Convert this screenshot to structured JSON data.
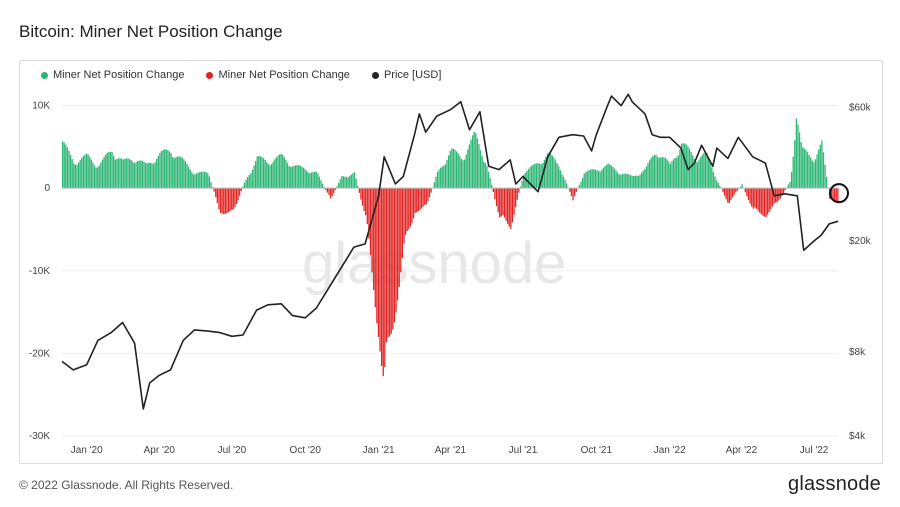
{
  "title": "Bitcoin: Miner Net Position Change",
  "legend": [
    {
      "label": "Miner Net Position Change",
      "color": "#2bb673"
    },
    {
      "label": "Miner Net Position Change",
      "color": "#e32222"
    },
    {
      "label": "Price [USD]",
      "color": "#222222"
    }
  ],
  "watermark": "glassnode",
  "footer": "© 2022 Glassnode. All Rights Reserved.",
  "brand": "glassnode",
  "chart_data": {
    "type": "bar",
    "x_ticks": [
      "Jan '20",
      "Apr '20",
      "Jul '20",
      "Oct '20",
      "Jan '21",
      "Apr '21",
      "Jul '21",
      "Oct '21",
      "Jan '22",
      "Apr '22",
      "Jul '22"
    ],
    "y_left_ticks": [
      "10K",
      "0",
      "-10K",
      "-20K",
      "-30K"
    ],
    "y_left_values": [
      10000,
      0,
      -10000,
      -20000,
      -30000
    ],
    "y_left_range": [
      -30000,
      12000
    ],
    "y_right_ticks": [
      "$60k",
      "$20k",
      "$8k",
      "$4k"
    ],
    "y_right_values": [
      60000,
      20000,
      8000,
      4000
    ],
    "y_right_scale": "log",
    "y_right_range": [
      4000,
      70000
    ],
    "x_range": [
      "2019-12-01",
      "2022-07-31"
    ],
    "series": [
      {
        "name": "Miner Net Position Change",
        "kind": "bar",
        "positive_color": "#2bb673",
        "negative_color": "#e32222",
        "points": [
          [
            "2019-12-01",
            6000
          ],
          [
            "2019-12-15",
            3500
          ],
          [
            "2020-01-01",
            4200
          ],
          [
            "2020-01-15",
            3000
          ],
          [
            "2020-02-01",
            5000
          ],
          [
            "2020-02-15",
            3500
          ],
          [
            "2020-03-01",
            4000
          ],
          [
            "2020-03-15",
            3000
          ],
          [
            "2020-04-01",
            4500
          ],
          [
            "2020-04-15",
            5000
          ],
          [
            "2020-05-01",
            3500
          ],
          [
            "2020-05-15",
            2000
          ],
          [
            "2020-06-01",
            2000
          ],
          [
            "2020-06-15",
            -3000
          ],
          [
            "2020-07-01",
            -3500
          ],
          [
            "2020-07-15",
            500
          ],
          [
            "2020-08-01",
            4000
          ],
          [
            "2020-08-15",
            3500
          ],
          [
            "2020-09-01",
            4200
          ],
          [
            "2020-09-15",
            3000
          ],
          [
            "2020-10-01",
            2500
          ],
          [
            "2020-10-15",
            2000
          ],
          [
            "2020-11-01",
            -1500
          ],
          [
            "2020-11-15",
            1500
          ],
          [
            "2020-12-01",
            2000
          ],
          [
            "2020-12-15",
            -4000
          ],
          [
            "2021-01-01",
            -19000
          ],
          [
            "2021-01-07",
            -27000
          ],
          [
            "2021-01-15",
            -20000
          ],
          [
            "2021-02-01",
            -8000
          ],
          [
            "2021-02-15",
            -3000
          ],
          [
            "2021-03-01",
            -2500
          ],
          [
            "2021-03-15",
            2000
          ],
          [
            "2021-04-01",
            5000
          ],
          [
            "2021-04-15",
            4000
          ],
          [
            "2021-05-01",
            7000
          ],
          [
            "2021-05-15",
            3500
          ],
          [
            "2021-06-01",
            -4000
          ],
          [
            "2021-06-15",
            -5000
          ],
          [
            "2021-07-01",
            2000
          ],
          [
            "2021-07-15",
            3000
          ],
          [
            "2021-08-01",
            4500
          ],
          [
            "2021-08-15",
            3000
          ],
          [
            "2021-09-01",
            -1500
          ],
          [
            "2021-09-15",
            2000
          ],
          [
            "2021-10-01",
            2500
          ],
          [
            "2021-10-15",
            3000
          ],
          [
            "2021-11-01",
            2000
          ],
          [
            "2021-11-15",
            1500
          ],
          [
            "2021-12-01",
            2500
          ],
          [
            "2021-12-15",
            5000
          ],
          [
            "2022-01-01",
            3000
          ],
          [
            "2022-01-15",
            6000
          ],
          [
            "2022-02-01",
            4000
          ],
          [
            "2022-02-15",
            4500
          ],
          [
            "2022-03-01",
            1000
          ],
          [
            "2022-03-15",
            -2000
          ],
          [
            "2022-04-01",
            500
          ],
          [
            "2022-04-15",
            -3000
          ],
          [
            "2022-05-01",
            -3500
          ],
          [
            "2022-05-15",
            -2000
          ],
          [
            "2022-06-01",
            1000
          ],
          [
            "2022-06-08",
            10000
          ],
          [
            "2022-06-15",
            5000
          ],
          [
            "2022-07-01",
            4000
          ],
          [
            "2022-07-10",
            5800
          ],
          [
            "2022-07-20",
            -1500
          ],
          [
            "2022-07-31",
            -2000
          ]
        ]
      },
      {
        "name": "Price [USD]",
        "kind": "line",
        "axis": "right",
        "color": "#222222",
        "points": [
          [
            "2019-12-01",
            7400
          ],
          [
            "2019-12-15",
            6900
          ],
          [
            "2020-01-01",
            7200
          ],
          [
            "2020-01-15",
            8800
          ],
          [
            "2020-02-01",
            9400
          ],
          [
            "2020-02-15",
            10200
          ],
          [
            "2020-03-01",
            8600
          ],
          [
            "2020-03-12",
            5000
          ],
          [
            "2020-03-20",
            6200
          ],
          [
            "2020-04-01",
            6600
          ],
          [
            "2020-04-15",
            6900
          ],
          [
            "2020-05-01",
            8800
          ],
          [
            "2020-05-15",
            9600
          ],
          [
            "2020-06-01",
            9500
          ],
          [
            "2020-06-15",
            9400
          ],
          [
            "2020-07-01",
            9100
          ],
          [
            "2020-07-15",
            9200
          ],
          [
            "2020-08-01",
            11300
          ],
          [
            "2020-08-15",
            11800
          ],
          [
            "2020-09-01",
            11900
          ],
          [
            "2020-09-15",
            10800
          ],
          [
            "2020-10-01",
            10600
          ],
          [
            "2020-10-15",
            11500
          ],
          [
            "2020-11-01",
            13800
          ],
          [
            "2020-11-15",
            16000
          ],
          [
            "2020-12-01",
            19000
          ],
          [
            "2020-12-15",
            19500
          ],
          [
            "2021-01-01",
            29000
          ],
          [
            "2021-01-08",
            40000
          ],
          [
            "2021-01-22",
            32000
          ],
          [
            "2021-02-01",
            34000
          ],
          [
            "2021-02-15",
            48000
          ],
          [
            "2021-02-21",
            57000
          ],
          [
            "2021-03-01",
            49000
          ],
          [
            "2021-03-15",
            56000
          ],
          [
            "2021-04-01",
            59000
          ],
          [
            "2021-04-14",
            63000
          ],
          [
            "2021-04-25",
            50000
          ],
          [
            "2021-05-08",
            58000
          ],
          [
            "2021-05-19",
            37000
          ],
          [
            "2021-06-01",
            36000
          ],
          [
            "2021-06-15",
            39000
          ],
          [
            "2021-06-22",
            32000
          ],
          [
            "2021-07-01",
            34000
          ],
          [
            "2021-07-20",
            30000
          ],
          [
            "2021-08-01",
            40000
          ],
          [
            "2021-08-15",
            47000
          ],
          [
            "2021-09-01",
            48000
          ],
          [
            "2021-09-15",
            47500
          ],
          [
            "2021-09-25",
            42000
          ],
          [
            "2021-10-01",
            48000
          ],
          [
            "2021-10-15",
            61000
          ],
          [
            "2021-10-20",
            66000
          ],
          [
            "2021-11-01",
            61000
          ],
          [
            "2021-11-10",
            67000
          ],
          [
            "2021-11-15",
            63000
          ],
          [
            "2021-12-01",
            57000
          ],
          [
            "2021-12-10",
            48000
          ],
          [
            "2021-12-20",
            47000
          ],
          [
            "2022-01-01",
            47000
          ],
          [
            "2022-01-15",
            43000
          ],
          [
            "2022-01-24",
            36000
          ],
          [
            "2022-02-01",
            38000
          ],
          [
            "2022-02-10",
            44000
          ],
          [
            "2022-02-24",
            37000
          ],
          [
            "2022-03-01",
            43000
          ],
          [
            "2022-03-15",
            39500
          ],
          [
            "2022-03-28",
            47000
          ],
          [
            "2022-04-15",
            40000
          ],
          [
            "2022-05-01",
            38000
          ],
          [
            "2022-05-12",
            29000
          ],
          [
            "2022-05-25",
            29500
          ],
          [
            "2022-06-10",
            29000
          ],
          [
            "2022-06-18",
            18500
          ],
          [
            "2022-07-01",
            20000
          ],
          [
            "2022-07-10",
            21000
          ],
          [
            "2022-07-20",
            23000
          ],
          [
            "2022-07-31",
            23500
          ]
        ]
      }
    ]
  }
}
